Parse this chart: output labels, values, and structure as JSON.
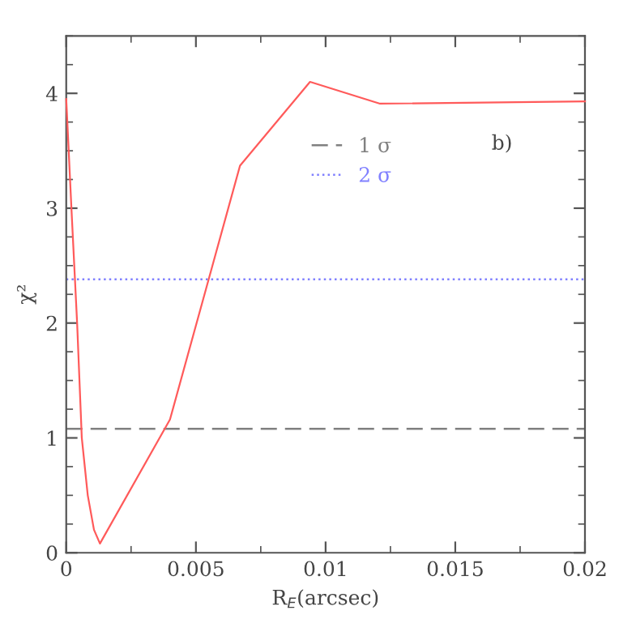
{
  "chart_data": {
    "type": "line",
    "xlabel": "R$_{E}$(arcsec)",
    "ylabel": "χ²",
    "series": [
      {
        "color": "#ff5a5a",
        "x": [
          0,
          0.0002,
          0.00042,
          0.0006,
          0.00083,
          0.00107,
          0.0013,
          0.004,
          0.0067,
          0.0094,
          0.0121,
          0.02
        ],
        "values": [
          3.95,
          3.0,
          2.0,
          1.0,
          0.5,
          0.2,
          0.08,
          1.16,
          3.37,
          4.1,
          3.91,
          3.93
        ]
      }
    ],
    "xlim": [
      0,
      0.02
    ],
    "ylim": [
      0,
      4.5
    ],
    "xticks": [
      0,
      0.005,
      0.01,
      0.015,
      0.02
    ],
    "yticks": [
      0,
      1,
      2,
      3,
      4
    ],
    "ref_lines": [
      {
        "axis": "y",
        "value": 1.08,
        "label": "1 σ",
        "color": "#808080",
        "line_style": "dashed"
      },
      {
        "axis": "y",
        "value": 2.38,
        "label": "2 σ",
        "color": "#8080ff",
        "line_style": "dotted"
      }
    ],
    "annotations": [
      "b)"
    ],
    "grid": false,
    "legend": "top",
    "marker": "none",
    "line_style": "solid"
  }
}
